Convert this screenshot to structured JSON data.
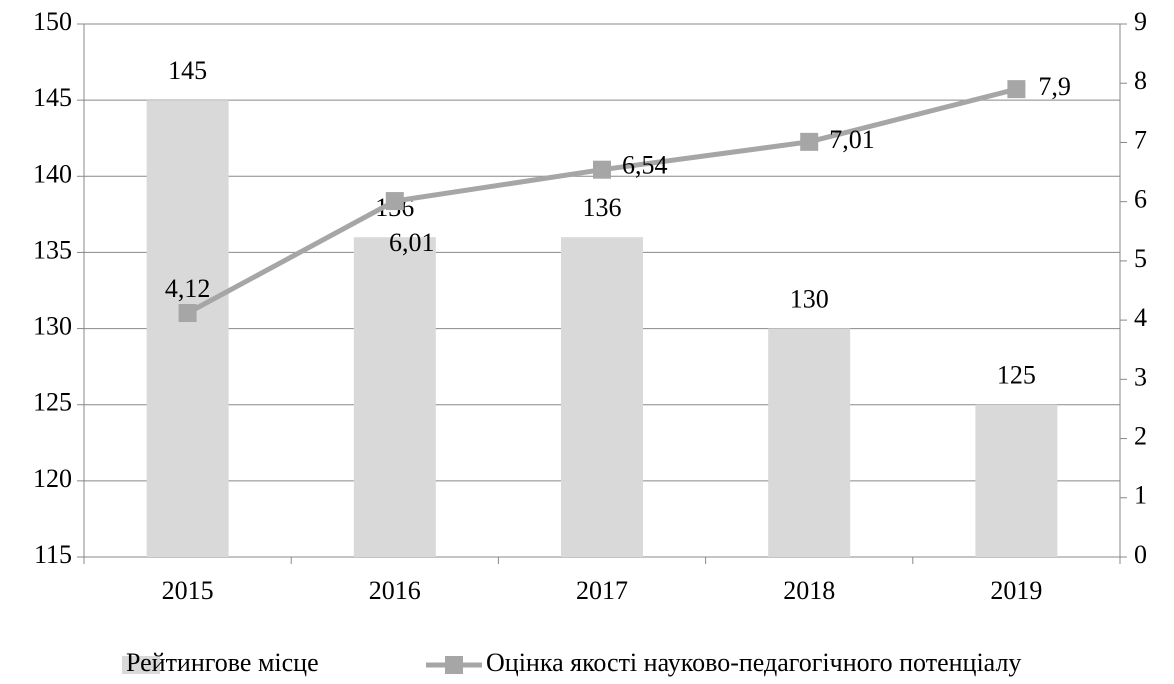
{
  "chart_data": {
    "type": "bar-line",
    "categories": [
      "2015",
      "2016",
      "2017",
      "2018",
      "2019"
    ],
    "series": [
      {
        "name": "Рейтингове місце",
        "type": "bar",
        "color": "#d9d9d9",
        "values": [
          145,
          136,
          136,
          130,
          125
        ]
      },
      {
        "name": "Оцінка якості науково-педагогічного потенціалу",
        "type": "line",
        "axis": "y2",
        "color": "#a6a6a6",
        "values": [
          4.12,
          6.01,
          6.54,
          7.01,
          7.9
        ],
        "value_labels": [
          "4,12",
          "6,01",
          "6,54",
          "7,01",
          "7,9"
        ]
      }
    ],
    "ylim": [
      115,
      150
    ],
    "yticks": [
      115,
      120,
      125,
      130,
      135,
      140,
      145,
      150
    ],
    "y2lim": [
      0,
      9
    ],
    "y2ticks": [
      0,
      1,
      2,
      3,
      4,
      5,
      6,
      7,
      8,
      9
    ],
    "grid": true,
    "legend": "bottom"
  }
}
